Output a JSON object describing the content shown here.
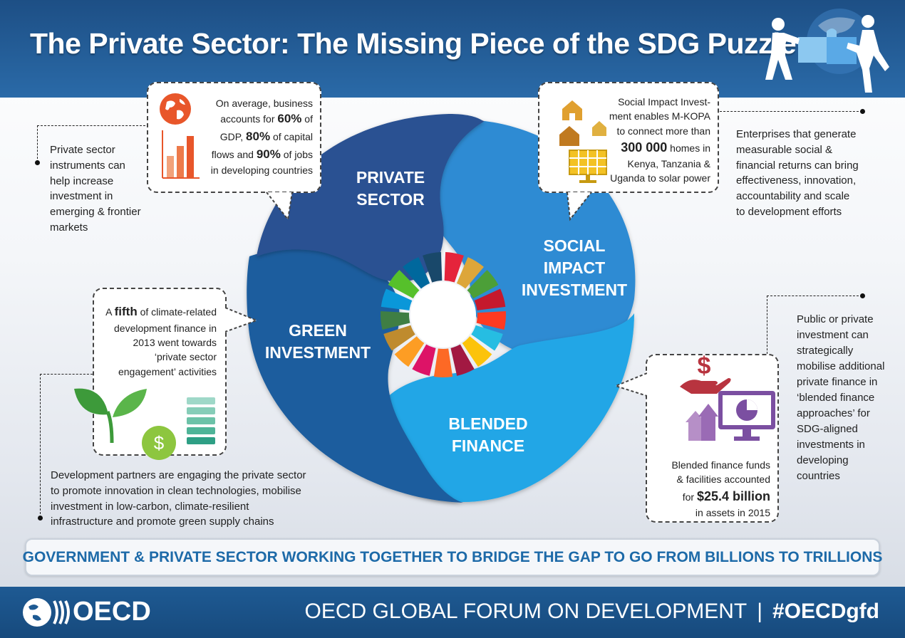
{
  "header": {
    "title": "The Private Sector: The Missing Piece of the SDG Puzzle",
    "illustration": "people-with-globe-puzzle-icon"
  },
  "diagram": {
    "segments": [
      {
        "id": "private",
        "label_line1": "PRIVATE",
        "label_line2": "SECTOR",
        "color": "#2a5192"
      },
      {
        "id": "social",
        "label_line1": "SOCIAL",
        "label_line2": "IMPACT",
        "label_line3": "INVESTMENT",
        "color": "#2d8bd3"
      },
      {
        "id": "green",
        "label_line1": "GREEN",
        "label_line2": "INVESTMENT",
        "color": "#1c5d9e"
      },
      {
        "id": "blended",
        "label_line1": "BLENDED",
        "label_line2": "FINANCE",
        "color": "#21a6e6"
      }
    ],
    "sdg_wheel_colors": [
      "#e5243b",
      "#dda63a",
      "#4c9f38",
      "#c5192d",
      "#ff3a21",
      "#26bde2",
      "#fcc30b",
      "#a21942",
      "#fd6925",
      "#dd1367",
      "#fd9d24",
      "#bf8b2e",
      "#3f7e44",
      "#0a97d9",
      "#56c02b",
      "#00689d",
      "#19486a"
    ]
  },
  "callouts": {
    "private": {
      "line1": "On average, business",
      "line2_pre": "accounts for ",
      "line2_bold": "60%",
      "line2_post": " of",
      "line3_pre": "GDP, ",
      "line3_bold": "80%",
      "line3_post": " of capital",
      "line4_pre": "flows and ",
      "line4_bold": "90%",
      "line4_post": " of jobs",
      "line5": "in developing countries"
    },
    "social": {
      "line1": "Social Impact Invest-",
      "line2": "ment enables M-KOPA",
      "line3": "to connect more than",
      "line4_bold": "300 000",
      "line4_post": " homes in",
      "line5": "Kenya, Tanzania &",
      "line6": "Uganda to solar power"
    },
    "green": {
      "line1_pre": "A ",
      "line1_bold": "fifth",
      "line1_post": " of climate-related",
      "line2": "development finance in",
      "line3": "2013 went towards",
      "line4": "‘private sector",
      "line5": "engagement’ activities"
    },
    "blended": {
      "line1": "Blended finance funds",
      "line2": "& facilities accounted",
      "line3_pre": "for ",
      "line3_bold": "$25.4 billion",
      "line4": "in assets in 2015"
    }
  },
  "notes": {
    "private": [
      "Private sector",
      "instruments can",
      "help increase",
      "investment in",
      "emerging & frontier",
      "markets"
    ],
    "social": [
      "Enterprises that generate",
      "measurable social &",
      "financial returns can bring",
      "effectiveness, innovation,",
      "accountability and scale",
      "to development efforts"
    ],
    "blended": [
      "Public or private",
      "investment can",
      "strategically",
      "mobilise additional",
      "private finance in",
      "‘blended finance",
      "approaches’ for",
      "SDG-aligned",
      "investments in",
      "developing",
      "countries"
    ],
    "green": [
      "Development partners are engaging the private sector",
      "to promote innovation in clean technologies, mobilise",
      "investment in low-carbon, climate-resilient",
      "infrastructure and promote green supply chains"
    ]
  },
  "banner": {
    "text": "GOVERNMENT &  PRIVATE SECTOR WORKING TOGETHER TO BRIDGE THE GAP TO GO FROM BILLIONS TO TRILLIONS"
  },
  "footer": {
    "logo_text": "OECD",
    "forum": "OECD GLOBAL FORUM ON DEVELOPMENT",
    "separator": "|",
    "hashtag": "#OECDgfd"
  },
  "icons": {
    "globe": "globe-icon",
    "bar_chart": "bar-chart-icon",
    "houses": "house-icon",
    "solar": "solar-panel-icon",
    "seedling": "seedling-icon",
    "coin": "dollar-coin-icon",
    "stack": "money-stack-icon",
    "hand_dollar": "hand-dollar-icon",
    "growth": "growth-arrows-icon",
    "monitor": "monitor-pie-chart-icon"
  }
}
